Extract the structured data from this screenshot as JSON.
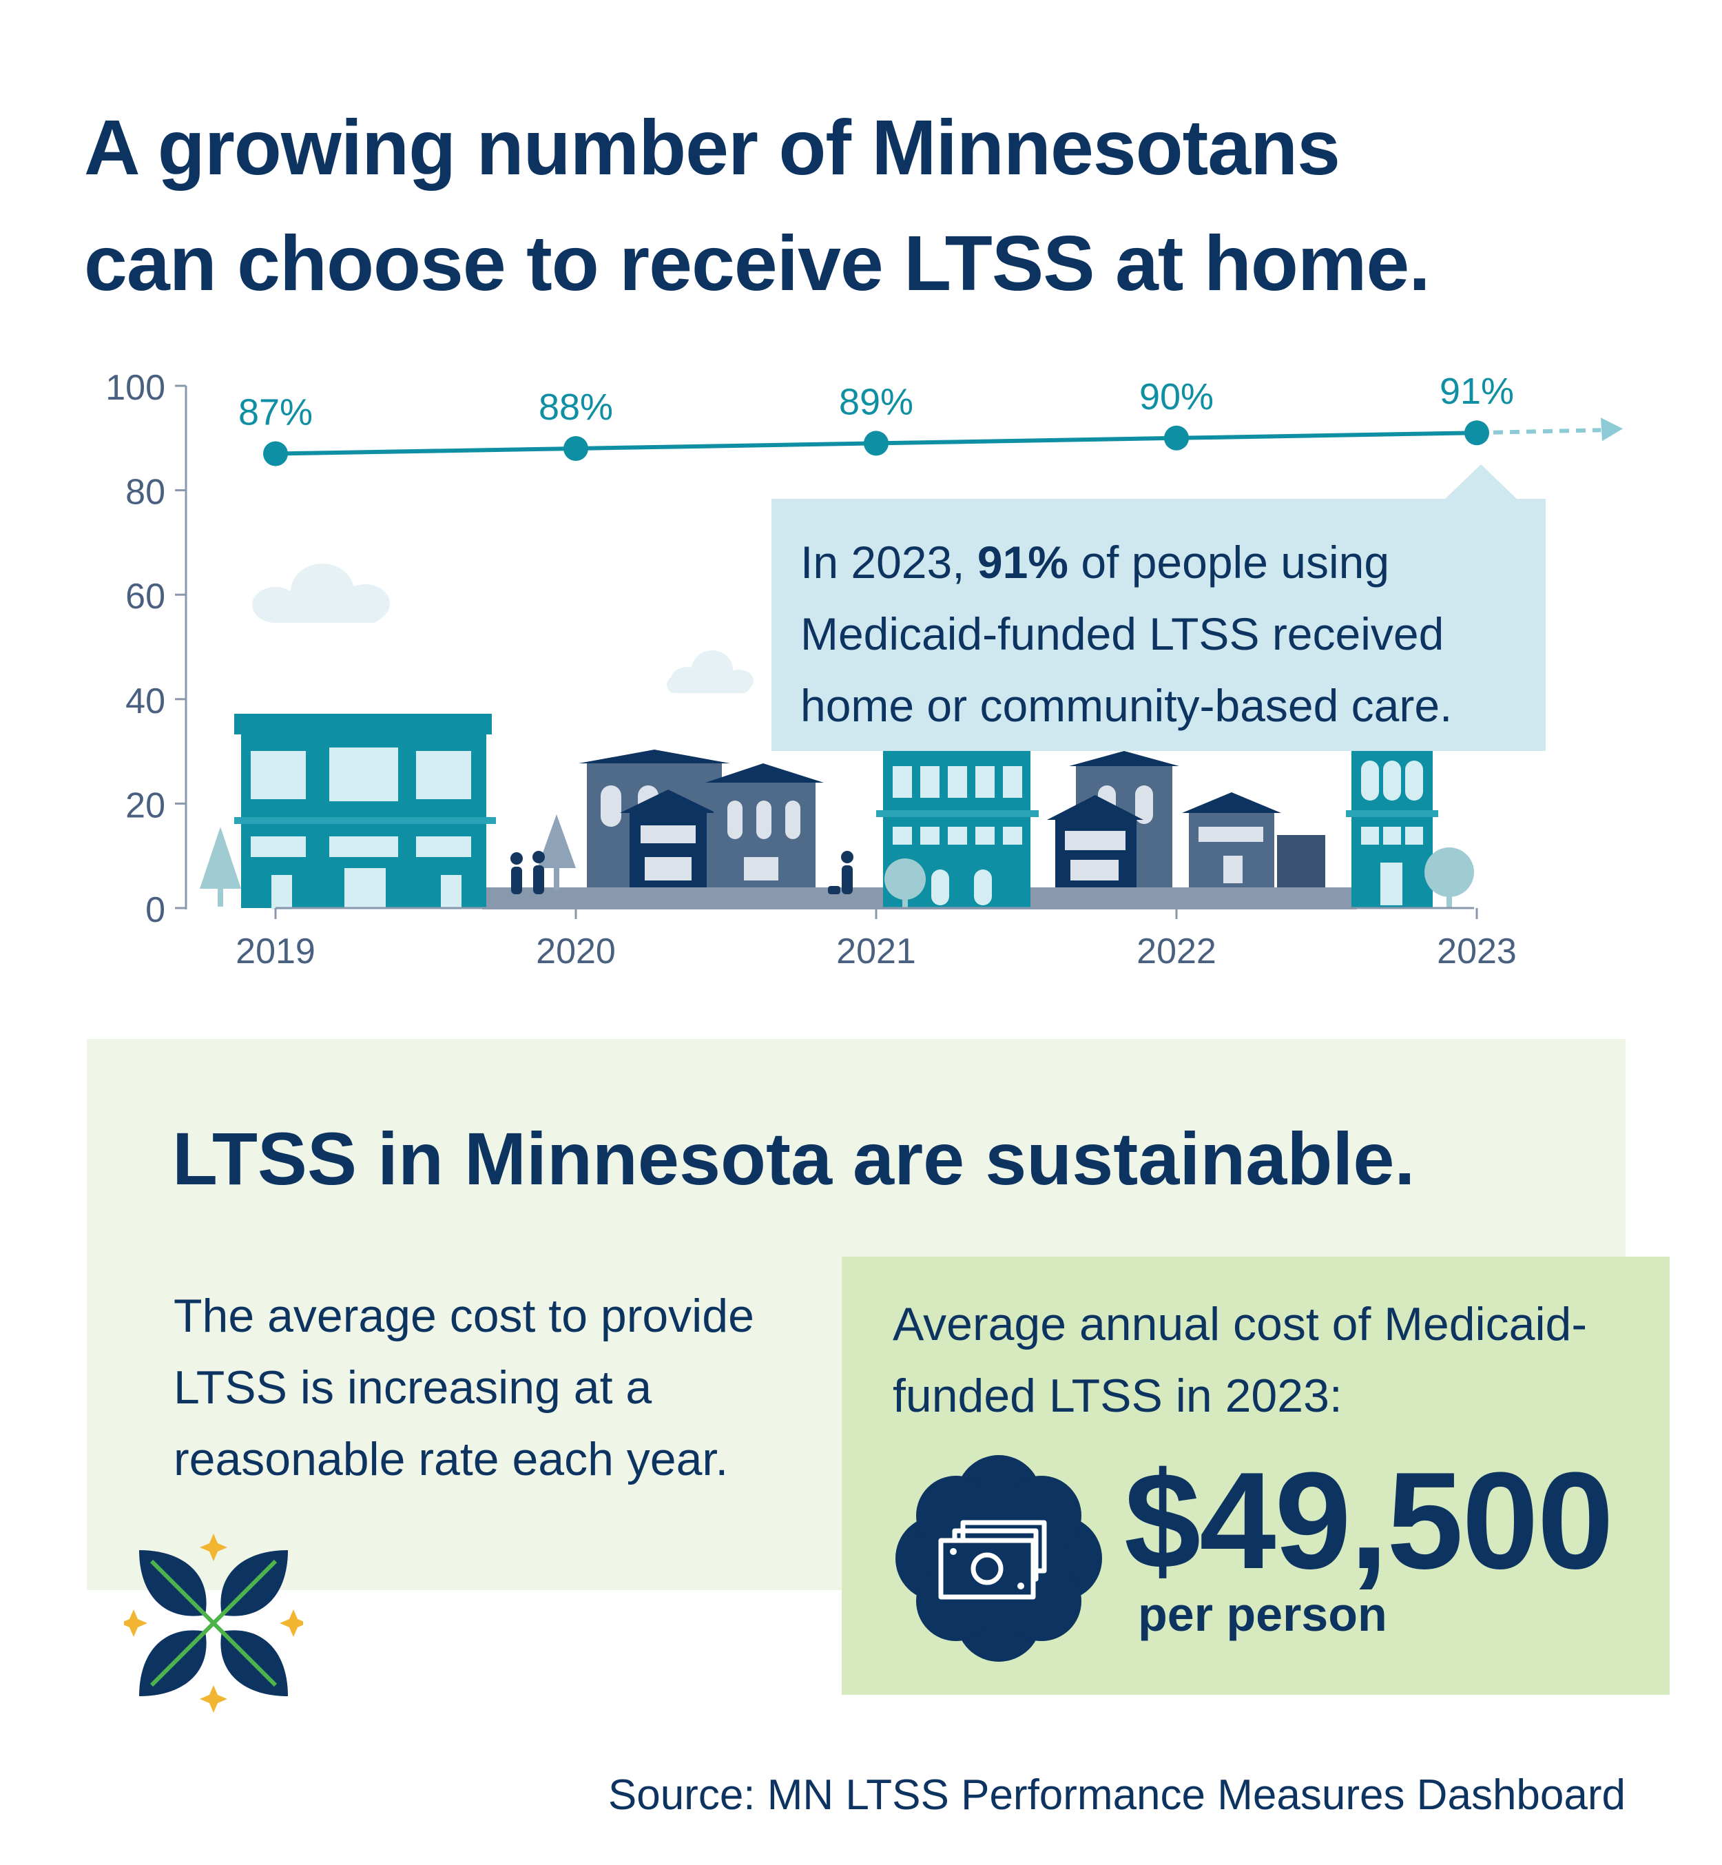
{
  "headline": {
    "line1": "A growing number of Minnesotans",
    "line2": "can choose to receive LTSS at home."
  },
  "chart_data": {
    "type": "line",
    "x": [
      "2019",
      "2020",
      "2021",
      "2022",
      "2023"
    ],
    "values": [
      87,
      88,
      89,
      90,
      91
    ],
    "data_labels": [
      "87%",
      "88%",
      "89%",
      "90%",
      "91%"
    ],
    "yticks": [
      "0",
      "20",
      "40",
      "60",
      "80",
      "100"
    ],
    "ylim": [
      0,
      100
    ],
    "grid": false,
    "line_color": "#0f8fa3",
    "trend_arrow": "dashed continuation after 2023"
  },
  "callout": {
    "pre": "In 2023, ",
    "bold": "91%",
    "post": " of people using Medicaid-funded LTSS received home or community-based care."
  },
  "section2": {
    "title": "LTSS in Minnesota are sustainable.",
    "body": "The average cost to provide LTSS is increasing at a reasonable rate each year."
  },
  "cost": {
    "label": "Average annual cost of Medicaid-funded LTSS in 2023:",
    "value": "$49,500",
    "unit": "per person",
    "icon": "money-bills-icon"
  },
  "logo": "flower-star-logo",
  "source": "Source: MN LTSS Performance Measures Dashboard",
  "colors": {
    "navy": "#0d3461",
    "teal": "#0f8fa3",
    "light_teal": "#cfe7ee",
    "light_green": "#eff6e8",
    "green": "#d6e9bf",
    "gold": "#f2b531"
  }
}
